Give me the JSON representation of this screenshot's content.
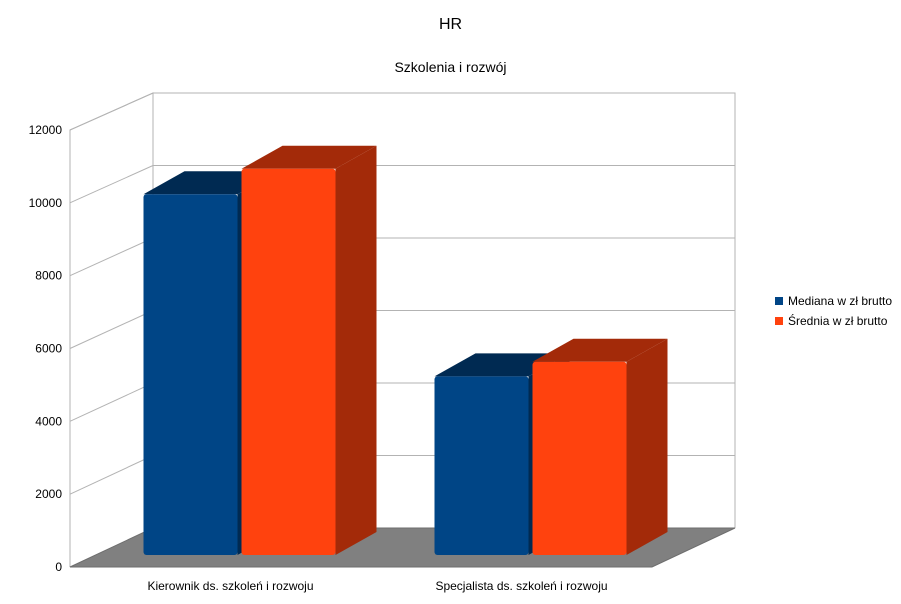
{
  "chart_data": {
    "type": "bar",
    "title": "HR",
    "subtitle": "Szkolenia i rozwój",
    "xlabel": "",
    "ylabel": "",
    "categories": [
      "Kierownik ds. szkoleń i rozwoju",
      "Specjalista ds. szkoleń i rozwoju"
    ],
    "series": [
      {
        "name": "Mediana w zł brutto",
        "values": [
          10400,
          5400
        ]
      },
      {
        "name": "Średnia w zł brutto",
        "values": [
          11100,
          5800
        ]
      }
    ],
    "ylim": [
      0,
      12000
    ],
    "yticks": [
      "0",
      "2000",
      "4000",
      "6000",
      "8000",
      "10000",
      "12000"
    ],
    "grid": true,
    "legend_position": "right",
    "three_d": true
  },
  "colors": {
    "series": [
      "#004586",
      "#ff420e"
    ],
    "series_dark": [
      "#002a52",
      "#a32a09"
    ],
    "grid": "#b3b3b3",
    "floor": "#808080"
  }
}
